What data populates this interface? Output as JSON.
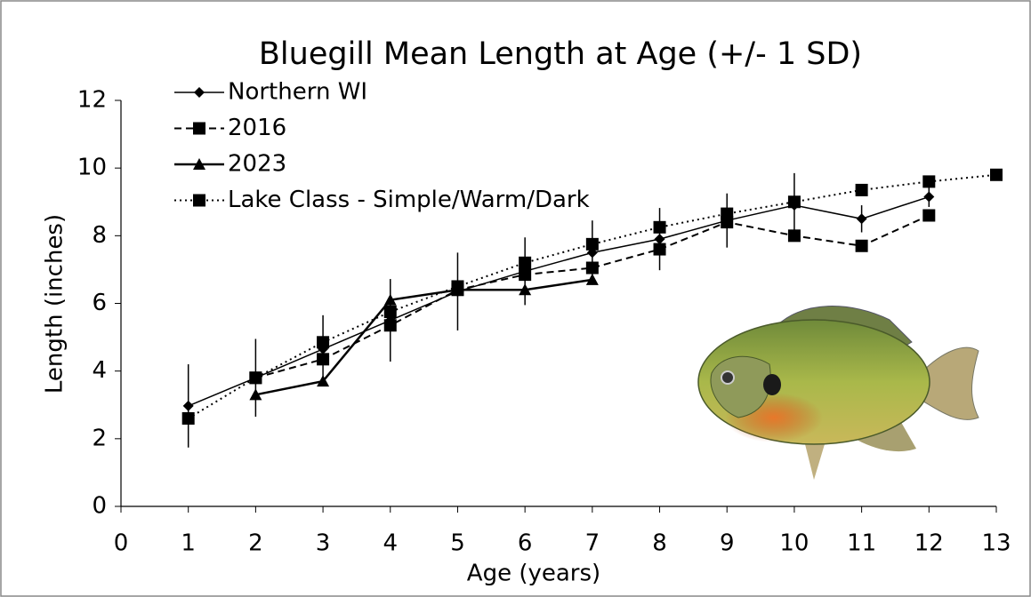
{
  "chart_data": {
    "type": "line",
    "title": "Bluegill Mean Length at Age (+/- 1 SD)",
    "x_label": "Age (years)",
    "y_label": "Length (inches)",
    "x": [
      1,
      2,
      3,
      4,
      5,
      6,
      7,
      8,
      9,
      10,
      11,
      12,
      13
    ],
    "xlim": [
      0,
      13
    ],
    "xticks": [
      0,
      1,
      2,
      3,
      4,
      5,
      6,
      7,
      8,
      9,
      10,
      11,
      12,
      13
    ],
    "ylim": [
      0,
      12
    ],
    "yticks": [
      0,
      2,
      4,
      6,
      8,
      10,
      12
    ],
    "grid": false,
    "legend": "top-left",
    "series": [
      {
        "name": "Northern WI",
        "color": "#000000",
        "line_style": "solid",
        "marker": "diamond",
        "values": [
          2.97,
          3.8,
          4.65,
          5.5,
          6.35,
          6.95,
          7.5,
          7.9,
          8.45,
          8.9,
          8.5,
          9.15,
          null
        ],
        "error": [
          1.23,
          1.15,
          1.0,
          1.22,
          1.15,
          1.0,
          0.95,
          0.92,
          0.8,
          0.95,
          0.4,
          0.3,
          null
        ]
      },
      {
        "name": "2016",
        "color": "#000000",
        "line_style": "dashed",
        "marker": "square",
        "values": [
          null,
          3.8,
          4.35,
          5.35,
          6.4,
          6.85,
          7.05,
          7.6,
          8.4,
          8.0,
          7.7,
          8.6,
          null
        ]
      },
      {
        "name": "2023",
        "color": "#000000",
        "line_style": "solid-thick",
        "marker": "triangle",
        "values": [
          null,
          3.3,
          3.7,
          6.1,
          6.4,
          6.4,
          6.7,
          null,
          null,
          null,
          null,
          null,
          null
        ]
      },
      {
        "name": "Lake Class - Simple/Warm/Dark",
        "color": "#000000",
        "line_style": "dotted",
        "marker": "square",
        "values": [
          2.6,
          3.8,
          4.85,
          5.75,
          6.5,
          7.2,
          7.75,
          8.25,
          8.65,
          9.0,
          9.35,
          9.6,
          9.8
        ]
      }
    ]
  }
}
